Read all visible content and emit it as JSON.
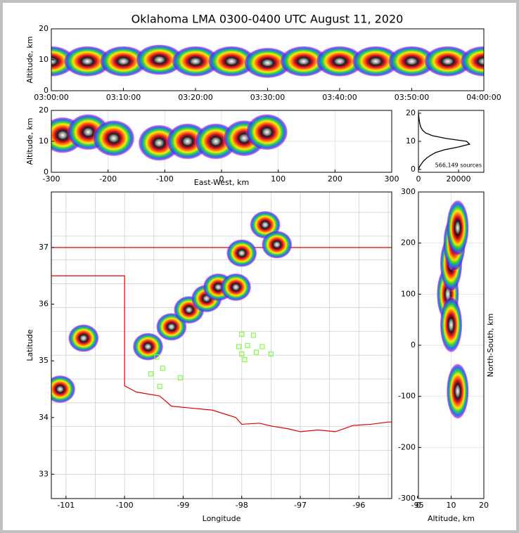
{
  "chart_data": [
    {
      "type": "heatmap",
      "title": "Oklahoma LMA 0300-0400 UTC August 11, 2020",
      "ylabel": "Altitude, km",
      "x": [
        0,
        5,
        10,
        15,
        20,
        25,
        30,
        35,
        40,
        45,
        50,
        55,
        60
      ],
      "y": [
        9.5,
        9.5,
        9.5,
        10,
        9.5,
        9.5,
        9,
        9.5,
        9.5,
        9.5,
        9.5,
        9.5,
        9.5
      ],
      "xlim": [
        0,
        60
      ],
      "ylim": [
        0,
        20
      ],
      "xticks": [
        {
          "value": 0,
          "label": "03:00:00"
        },
        {
          "value": 10,
          "label": "03:10:00"
        },
        {
          "value": 20,
          "label": "03:20:00"
        },
        {
          "value": 30,
          "label": "03:30:00"
        },
        {
          "value": 40,
          "label": "03:40:00"
        },
        {
          "value": 50,
          "label": "03:50:00"
        },
        {
          "value": 60,
          "label": "04:00:00"
        }
      ],
      "yticks": [
        0,
        10,
        20
      ],
      "grid": false
    },
    {
      "type": "heatmap",
      "xlabel": "East-West, km",
      "ylabel": "Altitude, km",
      "x": [
        -280,
        -235,
        -190,
        -110,
        -60,
        -10,
        40,
        80
      ],
      "y": [
        12,
        13,
        11,
        9.5,
        10,
        10,
        11,
        13
      ],
      "xlim": [
        -300,
        300
      ],
      "ylim": [
        0,
        20
      ],
      "xticks": [
        -300,
        -200,
        -100,
        0,
        100,
        200,
        300
      ],
      "yticks": [
        0,
        10,
        20
      ],
      "grid": true
    },
    {
      "type": "line",
      "annotation": "566,149 sources",
      "series": [
        {
          "color": "#000000",
          "x": [
            100,
            500,
            1500,
            2500,
            4000,
            6000,
            8500,
            13000,
            20000,
            25500,
            24000,
            14000,
            7000,
            3500,
            2000,
            1200,
            800,
            500,
            300,
            150,
            50
          ],
          "y": [
            0,
            1,
            2,
            3,
            4,
            5,
            6,
            7,
            8,
            9,
            10,
            11,
            12,
            13,
            14,
            15,
            16,
            17,
            18,
            19,
            20
          ]
        }
      ],
      "xlim": [
        0,
        32600
      ],
      "ylim": [
        -1,
        21
      ],
      "xticks": [
        0,
        20000
      ],
      "yticks": [
        0,
        10,
        20
      ],
      "grid": false
    },
    {
      "type": "map",
      "xlabel": "Longitude",
      "ylabel": "Latitude",
      "x": [
        -100.7,
        -99.6,
        -99.2,
        -98.9,
        -98.6,
        -98.4,
        -98.1,
        -98.0,
        -97.6,
        -97.4,
        -101.1
      ],
      "y": [
        35.4,
        35.25,
        35.6,
        35.9,
        36.1,
        36.3,
        36.3,
        36.9,
        37.4,
        37.05,
        34.5
      ],
      "stations": {
        "color": "#7fff3f",
        "x": [
          -98.0,
          -97.8,
          -98.05,
          -97.9,
          -97.65,
          -98.0,
          -97.75,
          -97.5,
          -97.95,
          -99.45,
          -99.35,
          -99.55,
          -99.05,
          -99.4
        ],
        "y": [
          35.47,
          35.45,
          35.25,
          35.27,
          35.25,
          35.12,
          35.15,
          35.12,
          35.02,
          35.07,
          34.87,
          34.77,
          34.7,
          34.55
        ]
      },
      "border_color": "#e00000",
      "xlim": [
        -101.25,
        -95.44
      ],
      "ylim": [
        32.57,
        37.98
      ],
      "xticks": [
        -101,
        -100,
        -99,
        -98,
        -97,
        -96,
        -95
      ],
      "yticks": [
        33,
        34,
        35,
        36,
        37
      ],
      "grid": false
    },
    {
      "type": "heatmap",
      "xlabel": "Altitude, km",
      "ylabel": "North-South, km",
      "x": [
        9,
        10,
        10,
        11,
        12,
        12
      ],
      "y": [
        100,
        40,
        160,
        200,
        230,
        -90
      ],
      "xlim": [
        0,
        20
      ],
      "ylim": [
        -300,
        300
      ],
      "xticks": [
        0,
        10,
        20
      ],
      "yticks": [
        -300,
        -200,
        -100,
        0,
        100,
        200,
        300
      ],
      "grid": true
    }
  ]
}
